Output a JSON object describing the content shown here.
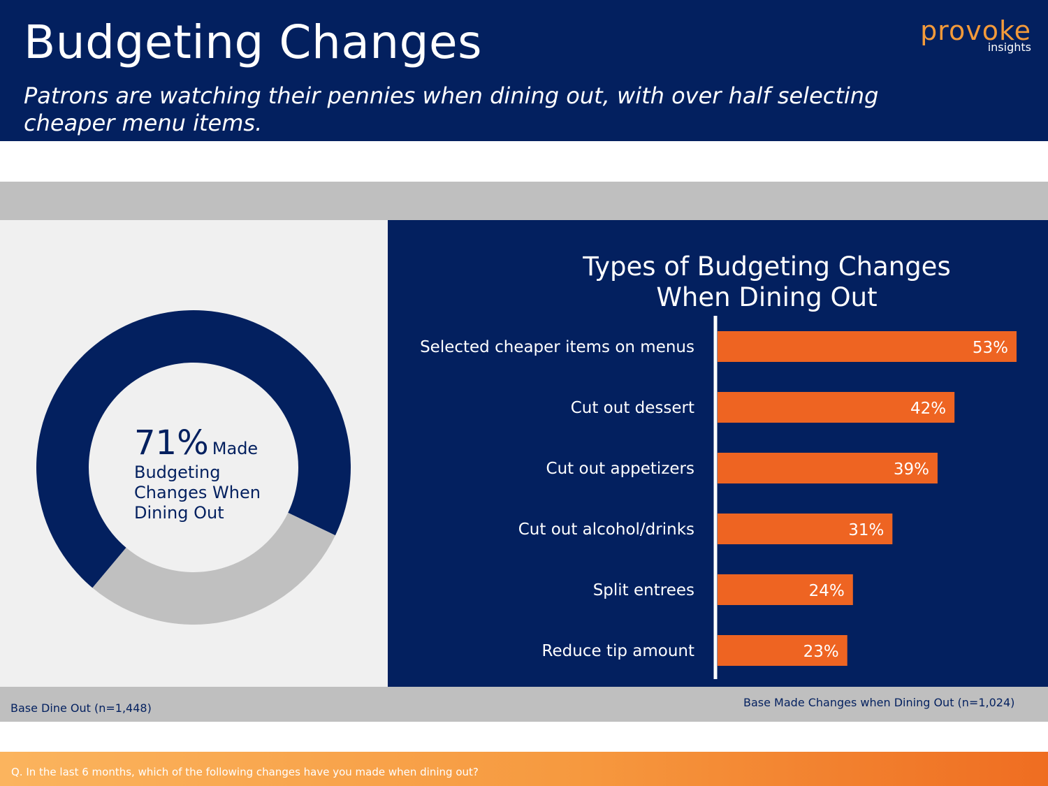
{
  "header": {
    "title": "Budgeting Changes",
    "subtitle": "Patrons are watching their pennies when dining out, with over half selecting cheaper menu items.",
    "logo_main": "provoke",
    "logo_sub": "insights"
  },
  "donut": {
    "percent_label": "71%",
    "made_label": "Made",
    "rest_label": "Budgeting Changes When Dining Out",
    "made_pct": 71,
    "not_made_pct": 29,
    "colors": {
      "made": "#03205f",
      "not_made": "#c0c0c0"
    }
  },
  "chart_data": {
    "type": "bar",
    "orientation": "horizontal",
    "title": "Types of Budgeting Changes When Dining Out",
    "categories": [
      "Selected cheaper items on menus",
      "Cut out dessert",
      "Cut out appetizers",
      "Cut out alcohol/drinks",
      "Split entrees",
      "Reduce tip amount"
    ],
    "values": [
      53,
      42,
      39,
      31,
      24,
      23
    ],
    "data_labels": [
      "53%",
      "42%",
      "39%",
      "31%",
      "24%",
      "23%"
    ],
    "unit": "%",
    "xlim": [
      0,
      58
    ],
    "grid": false,
    "colors": {
      "bar": "#ee6422",
      "axis": "#ffffff",
      "label": "#ffffff"
    }
  },
  "base": {
    "left": "Base  Dine Out (n=1,448)",
    "right": "Base  Made Changes when Dining Out (n=1,024)"
  },
  "footer": {
    "question": "Q. In the last 6 months, which of the following changes have you made when dining out?"
  }
}
